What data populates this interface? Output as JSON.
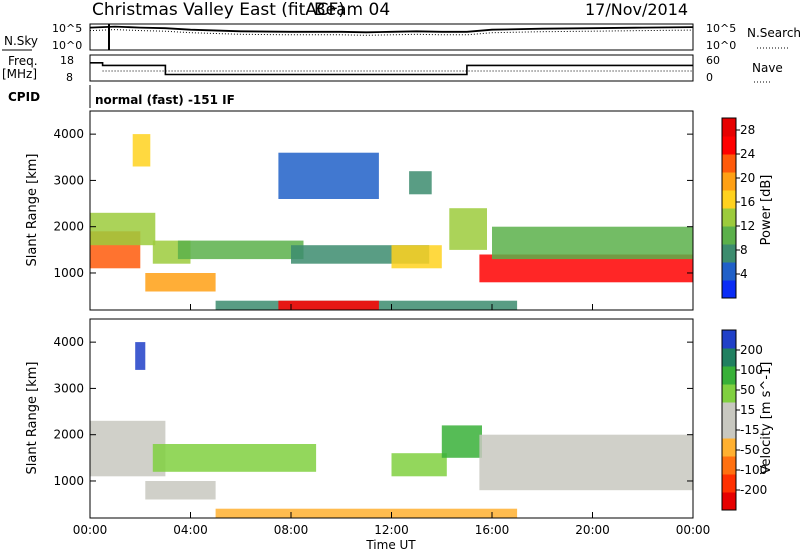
{
  "header": {
    "title": "Christmas Valley East (fitACF)",
    "beam": "Beam 04",
    "date": "17/Nov/2014"
  },
  "top_panels": {
    "nsky_label": "N.Sky",
    "nsky_ticks": [
      "10^5",
      "10^0"
    ],
    "nsearch_label": "N.Search",
    "nsearch_ticks": [
      "10^5",
      "10^0"
    ],
    "freq_label_1": "Freq.",
    "freq_label_2": "[MHz]",
    "freq_ticks": [
      "18",
      "8"
    ],
    "nave_label": "Nave",
    "nave_ticks": [
      "60",
      "0"
    ],
    "cpid_label": "CPID",
    "cpid_text": "normal (fast) -151 IF"
  },
  "chart_data": [
    {
      "type": "line",
      "panel": "sky-noise",
      "x_hours": [
        0,
        1,
        2,
        3,
        4,
        6,
        8,
        10,
        11,
        12,
        13,
        14,
        15,
        16,
        18,
        20,
        22,
        24
      ],
      "series": [
        {
          "values_log10": [
            4.3,
            4.5,
            4.3,
            4.2,
            3.9,
            3.6,
            3.5,
            3.5,
            3.4,
            3.5,
            3.6,
            3.5,
            3.5,
            3.9,
            4.1,
            4.2,
            4.3,
            4.4
          ]
        }
      ],
      "ylim": [
        0,
        5
      ]
    },
    {
      "type": "line",
      "panel": "frequency",
      "ylim_freq_mhz": [
        8,
        18
      ],
      "ylim_nave": [
        0,
        60
      ],
      "series": [
        {
          "x_hours": [
            0,
            0.5,
            0.5,
            3.0,
            3.0,
            15.0,
            15.0,
            24
          ],
          "values": [
            15,
            15,
            14,
            14,
            10.5,
            10.5,
            14,
            14
          ]
        }
      ]
    },
    {
      "type": "heatmap",
      "title": "",
      "xlabel": "Time UT",
      "ylabel": "Slant Range [km]",
      "x_ticks": [
        "00:00",
        "04:00",
        "08:00",
        "12:00",
        "16:00",
        "20:00",
        "00:00"
      ],
      "xlim_hours": [
        0,
        24
      ],
      "y_ticks": [
        1000,
        2000,
        3000,
        4000
      ],
      "ylim": [
        200,
        4500
      ],
      "colorbar_label": "Power [dB]",
      "colorbar_ticks": [
        4,
        8,
        12,
        16,
        20,
        24,
        28
      ],
      "colorbar_range": [
        0,
        30
      ],
      "colorbar_colors": [
        "#0a2cf5",
        "#2060c8",
        "#3c8c6e",
        "#5bb04a",
        "#9ccb3c",
        "#ffd21e",
        "#ffa014",
        "#ff5a0a",
        "#ff0000",
        "#e60000"
      ],
      "regions": [
        {
          "t0": 0.0,
          "t1": 2.0,
          "r0": 1100,
          "r1": 1900,
          "value": 22
        },
        {
          "t0": 0.0,
          "t1": 2.6,
          "r0": 1600,
          "r1": 2300,
          "value": 12
        },
        {
          "t0": 2.5,
          "t1": 4.0,
          "r0": 1200,
          "r1": 1700,
          "value": 14
        },
        {
          "t0": 1.7,
          "t1": 2.4,
          "r0": 3300,
          "r1": 4000,
          "value": 16
        },
        {
          "t0": 2.2,
          "t1": 5.0,
          "r0": 600,
          "r1": 1000,
          "value": 20
        },
        {
          "t0": 3.5,
          "t1": 8.5,
          "r0": 1300,
          "r1": 1700,
          "value": 11
        },
        {
          "t0": 7.5,
          "t1": 11.5,
          "r0": 2600,
          "r1": 3600,
          "value": 5
        },
        {
          "t0": 12.7,
          "t1": 13.6,
          "r0": 2700,
          "r1": 3200,
          "value": 6
        },
        {
          "t0": 8.0,
          "t1": 13.5,
          "r0": 1200,
          "r1": 1600,
          "value": 6
        },
        {
          "t0": 12.0,
          "t1": 14.0,
          "r0": 1100,
          "r1": 1600,
          "value": 16
        },
        {
          "t0": 14.3,
          "t1": 15.8,
          "r0": 1500,
          "r1": 2400,
          "value": 14
        },
        {
          "t0": 15.5,
          "t1": 24.0,
          "r0": 800,
          "r1": 1400,
          "value": 25
        },
        {
          "t0": 16.0,
          "t1": 24.0,
          "r0": 1300,
          "r1": 2000,
          "value": 10
        },
        {
          "t0": 5.0,
          "t1": 17.0,
          "r0": 200,
          "r1": 400,
          "value": 8
        },
        {
          "t0": 7.5,
          "t1": 11.5,
          "r0": 200,
          "r1": 400,
          "value": 26
        }
      ]
    },
    {
      "type": "heatmap",
      "title": "",
      "xlabel": "Time UT",
      "ylabel": "Slant Range [km]",
      "x_ticks": [
        "00:00",
        "04:00",
        "08:00",
        "12:00",
        "16:00",
        "20:00",
        "00:00"
      ],
      "xlim_hours": [
        0,
        24
      ],
      "y_ticks": [
        1000,
        2000,
        3000,
        4000
      ],
      "ylim": [
        200,
        4500
      ],
      "colorbar_label": "Velocity [m s^-1]",
      "colorbar_ticks": [
        200,
        100,
        50,
        15,
        -15,
        -50,
        -100,
        -200
      ],
      "colorbar_colors": [
        "#2040c8",
        "#208060",
        "#38b038",
        "#80d040",
        "#c8c8c0",
        "#c8c8c0",
        "#ffb030",
        "#ff7010",
        "#ff3000",
        "#e60000"
      ],
      "regions": [
        {
          "t0": 0.0,
          "t1": 3.0,
          "r0": 1100,
          "r1": 2300,
          "value": 0
        },
        {
          "t0": 2.5,
          "t1": 9.0,
          "r0": 1200,
          "r1": 1800,
          "value": 40
        },
        {
          "t0": 2.2,
          "t1": 5.0,
          "r0": 600,
          "r1": 1000,
          "value": 0
        },
        {
          "t0": 1.8,
          "t1": 2.2,
          "r0": 3400,
          "r1": 4000,
          "value": 220
        },
        {
          "t0": 12.0,
          "t1": 14.2,
          "r0": 1100,
          "r1": 1600,
          "value": 40
        },
        {
          "t0": 14.0,
          "t1": 15.6,
          "r0": 1500,
          "r1": 2200,
          "value": 60
        },
        {
          "t0": 15.5,
          "t1": 24.0,
          "r0": 800,
          "r1": 2000,
          "value": 0
        },
        {
          "t0": 5.0,
          "t1": 17.0,
          "r0": 200,
          "r1": 400,
          "value": -40
        }
      ]
    }
  ]
}
